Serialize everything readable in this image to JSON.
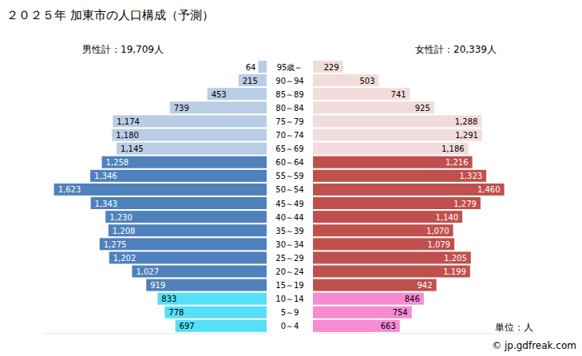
{
  "chart_data": {
    "type": "bar",
    "orientation": "horizontal",
    "title": "２０２５年 加東市の人口構成（予測）",
    "categories": [
      "95歳～",
      "90～94",
      "85～89",
      "80～84",
      "75～79",
      "70～74",
      "65～69",
      "60～64",
      "55～59",
      "50～54",
      "45～49",
      "40～44",
      "35～39",
      "30～34",
      "25～29",
      "20～24",
      "15～19",
      "10～14",
      "5～9",
      "0～4"
    ],
    "xlim": [
      0,
      1700
    ],
    "tick_labels": false,
    "data_labels": true,
    "annotations": [
      "単位：人",
      "© jp.gdfreak.com"
    ],
    "series": [
      {
        "name": "男性計：19,709人",
        "values": [
          64,
          215,
          453,
          739,
          1174,
          1180,
          1145,
          1258,
          1346,
          1623,
          1343,
          1230,
          1208,
          1275,
          1202,
          1027,
          919,
          833,
          778,
          697
        ],
        "value_labels": [
          "64",
          "215",
          "453",
          "739",
          "1,174",
          "1,180",
          "1,145",
          "1,258",
          "1,346",
          "1,623",
          "1,343",
          "1,230",
          "1,208",
          "1,275",
          "1,202",
          "1,027",
          "919",
          "833",
          "778",
          "697"
        ],
        "colors": [
          "#b9cde5",
          "#b9cde5",
          "#b9cde5",
          "#b9cde5",
          "#b9cde5",
          "#b9cde5",
          "#b9cde5",
          "#4f81bd",
          "#4f81bd",
          "#4f81bd",
          "#4f81bd",
          "#4f81bd",
          "#4f81bd",
          "#4f81bd",
          "#4f81bd",
          "#4f81bd",
          "#4f81bd",
          "#55e0f7",
          "#55e0f7",
          "#55e0f7"
        ]
      },
      {
        "name": "女性計：20,339人",
        "values": [
          229,
          503,
          741,
          925,
          1288,
          1291,
          1186,
          1216,
          1323,
          1460,
          1279,
          1140,
          1070,
          1079,
          1205,
          1199,
          942,
          846,
          754,
          663
        ],
        "value_labels": [
          "229",
          "503",
          "741",
          "925",
          "1,288",
          "1,291",
          "1,186",
          "1,216",
          "1,323",
          "1,460",
          "1,279",
          "1,140",
          "1,070",
          "1,079",
          "1,205",
          "1,199",
          "942",
          "846",
          "754",
          "663"
        ],
        "colors": [
          "#f2dcdb",
          "#f2dcdb",
          "#f2dcdb",
          "#f2dcdb",
          "#f2dcdb",
          "#f2dcdb",
          "#f2dcdb",
          "#c0504d",
          "#c0504d",
          "#c0504d",
          "#c0504d",
          "#c0504d",
          "#c0504d",
          "#c0504d",
          "#c0504d",
          "#c0504d",
          "#c0504d",
          "#f78bd3",
          "#f78bd3",
          "#f78bd3"
        ]
      }
    ]
  }
}
